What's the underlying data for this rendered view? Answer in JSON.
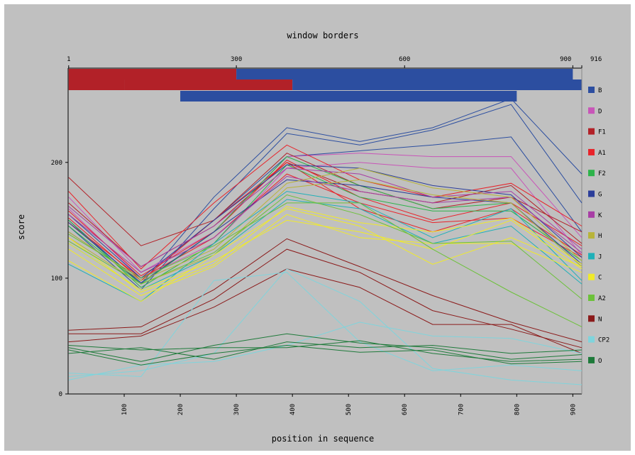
{
  "chart_data": {
    "type": "line",
    "title": "window borders",
    "xlabel": "position in sequence",
    "ylabel": "score",
    "xlim": [
      0,
      916
    ],
    "ylim": [
      0,
      290
    ],
    "x_ticks": [
      100,
      200,
      300,
      400,
      500,
      600,
      700,
      800,
      900
    ],
    "x_tick_labels": [
      "100",
      "200",
      "300",
      "400",
      "500",
      "600",
      "700",
      "800",
      "900"
    ],
    "y_ticks": [
      0,
      100,
      200
    ],
    "y_tick_labels": [
      "0",
      "100",
      "200"
    ],
    "top_ticks": [
      1,
      300,
      600,
      900,
      916
    ],
    "top_tick_labels": [
      "1",
      "300",
      "600",
      "900",
      "916"
    ],
    "grid": false,
    "legend_position": "right",
    "window_bars": [
      {
        "start": 1,
        "end": 300,
        "row": 0,
        "color": "#b22128"
      },
      {
        "start": 300,
        "end": 900,
        "row": 0,
        "color": "#2c4ea0"
      },
      {
        "start": 1,
        "end": 100,
        "row": 1,
        "color": "#b22128"
      },
      {
        "start": 100,
        "end": 400,
        "row": 1,
        "color": "#b22128"
      },
      {
        "start": 400,
        "end": 916,
        "row": 1,
        "color": "#2c4ea0"
      },
      {
        "start": 200,
        "end": 800,
        "row": 2,
        "color": "#2c4ea0"
      }
    ],
    "x": [
      1,
      130,
      260,
      390,
      520,
      650,
      790,
      916
    ],
    "series": [
      {
        "name": "B",
        "color": "#2c4ea0",
        "lines": [
          [
            150,
            95,
            170,
            230,
            218,
            230,
            255,
            190
          ],
          [
            145,
            90,
            160,
            225,
            215,
            228,
            250,
            165
          ],
          [
            140,
            98,
            150,
            205,
            210,
            215,
            222,
            140
          ]
        ]
      },
      {
        "name": "D",
        "color": "#c855b8",
        "lines": [
          [
            170,
            105,
            140,
            205,
            208,
            205,
            205,
            135
          ],
          [
            160,
            100,
            130,
            195,
            200,
            195,
            195,
            120
          ]
        ]
      },
      {
        "name": "F1",
        "color": "#b22128",
        "lines": [
          [
            187,
            128,
            150,
            208,
            180,
            160,
            170,
            140
          ],
          [
            165,
            110,
            145,
            200,
            175,
            165,
            180,
            130
          ]
        ]
      },
      {
        "name": "A1",
        "color": "#e8232a",
        "lines": [
          [
            175,
            108,
            165,
            215,
            185,
            170,
            182,
            145
          ],
          [
            158,
            102,
            140,
            202,
            170,
            150,
            165,
            128
          ],
          [
            152,
            98,
            150,
            200,
            160,
            140,
            160,
            120
          ],
          [
            148,
            100,
            135,
            190,
            165,
            148,
            152,
            118
          ]
        ]
      },
      {
        "name": "F2",
        "color": "#2db34a",
        "lines": [
          [
            145,
            95,
            140,
            205,
            180,
            160,
            165,
            110
          ],
          [
            150,
            92,
            130,
            198,
            170,
            158,
            158,
            115
          ]
        ]
      },
      {
        "name": "G",
        "color": "#2c3e9a",
        "lines": [
          [
            155,
            100,
            150,
            198,
            195,
            180,
            172,
            118
          ],
          [
            148,
            96,
            140,
            185,
            180,
            170,
            165,
            112
          ]
        ]
      },
      {
        "name": "K",
        "color": "#a83ea5",
        "lines": [
          [
            162,
            110,
            145,
            195,
            190,
            170,
            175,
            125
          ],
          [
            155,
            105,
            135,
            188,
            175,
            165,
            170,
            122
          ]
        ]
      },
      {
        "name": "H",
        "color": "#b8b43a",
        "lines": [
          [
            140,
            98,
            125,
            182,
            195,
            178,
            170,
            115
          ],
          [
            135,
            95,
            120,
            178,
            185,
            172,
            165,
            110
          ]
        ]
      },
      {
        "name": "J",
        "color": "#1fb0b8",
        "lines": [
          [
            112,
            80,
            130,
            175,
            165,
            135,
            160,
            98
          ],
          [
            130,
            90,
            120,
            168,
            160,
            130,
            145,
            95
          ]
        ]
      },
      {
        "name": "C",
        "color": "#f0ea2a",
        "lines": [
          [
            115,
            80,
            120,
            160,
            145,
            112,
            135,
            110
          ],
          [
            125,
            85,
            110,
            155,
            135,
            130,
            130,
            105
          ],
          [
            130,
            90,
            115,
            150,
            140,
            125,
            150,
            108
          ],
          [
            135,
            88,
            112,
            162,
            148,
            140,
            152,
            112
          ]
        ]
      },
      {
        "name": "A2",
        "color": "#6cc13a",
        "lines": [
          [
            138,
            100,
            128,
            165,
            165,
            125,
            88,
            58
          ],
          [
            132,
            95,
            122,
            172,
            155,
            130,
            132,
            82
          ]
        ]
      },
      {
        "name": "N",
        "color": "#8b1a1a",
        "lines": [
          [
            55,
            58,
            90,
            134,
            110,
            85,
            62,
            45
          ],
          [
            52,
            52,
            82,
            125,
            105,
            72,
            56,
            40
          ],
          [
            45,
            50,
            75,
            108,
            92,
            60,
            60,
            35
          ]
        ]
      },
      {
        "name": "CP2",
        "color": "#7fd4dc",
        "lines": [
          [
            15,
            20,
            35,
            108,
            80,
            22,
            12,
            8
          ],
          [
            18,
            15,
            98,
            105,
            45,
            20,
            25,
            20
          ],
          [
            12,
            25,
            28,
            42,
            62,
            50,
            48,
            35
          ]
        ]
      },
      {
        "name": "O",
        "color": "#1e7a3a",
        "lines": [
          [
            40,
            28,
            42,
            52,
            44,
            40,
            30,
            34
          ],
          [
            38,
            25,
            35,
            42,
            36,
            38,
            26,
            28
          ],
          [
            35,
            40,
            30,
            45,
            40,
            42,
            35,
            38
          ],
          [
            42,
            38,
            40,
            40,
            46,
            35,
            28,
            30
          ]
        ]
      }
    ]
  }
}
